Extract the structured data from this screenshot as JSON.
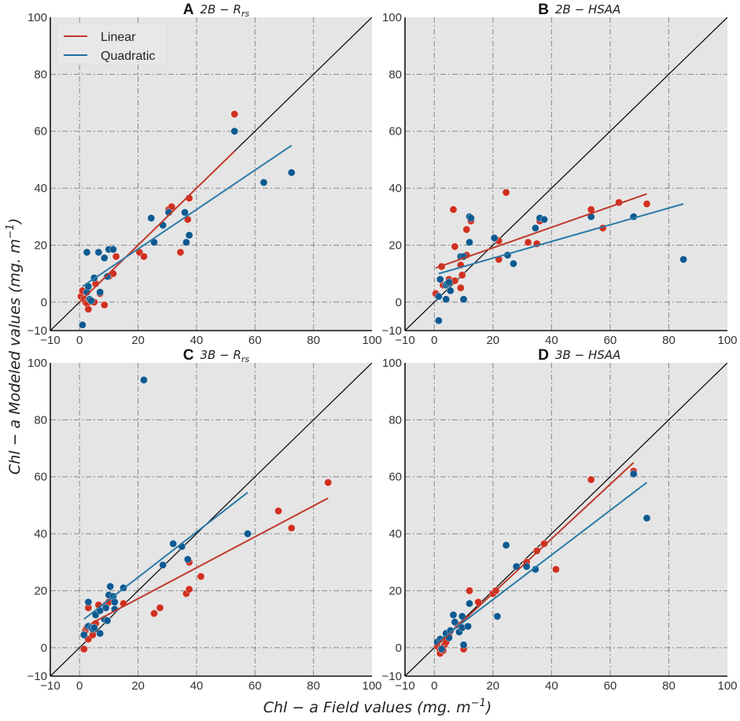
{
  "figure": {
    "xlabel": "Chl − a Field values (mg. m",
    "xlabel_sup": "−1",
    "xlabel_close": ")",
    "ylabel": "Chl − a Modeled values (mg. m",
    "ylabel_sup": "−1",
    "ylabel_close": ")",
    "legend": [
      {
        "label": "Linear",
        "color": "#c0392b"
      },
      {
        "label": "Quadratic",
        "color": "#1f6f9f"
      }
    ],
    "colors": {
      "linear_points": "#d03020",
      "quadratic_points": "#0d5a91",
      "linear_fit": "#c0392b",
      "quadratic_fit": "#2a7aa8",
      "one_to_one": "#000000",
      "axes_bg": "#e5e5e5",
      "grid": "#8a8a8a"
    }
  },
  "chart_data": [
    {
      "panel": "A",
      "type": "scatter",
      "title_letter": "A",
      "title": "2B − R",
      "title_sub": "rs",
      "xlim": [
        -10,
        100
      ],
      "ylim": [
        -10,
        100
      ],
      "xticks": [
        -10,
        0,
        20,
        40,
        60,
        80,
        100
      ],
      "yticks": [
        -10,
        0,
        20,
        40,
        60,
        80,
        100
      ],
      "grid": true,
      "legend_position": "top-left",
      "one_to_one_line": true,
      "series": [
        {
          "name": "Linear",
          "points": [
            [
              0.5,
              2
            ],
            [
              1,
              4
            ],
            [
              1.5,
              1
            ],
            [
              2,
              0
            ],
            [
              2.5,
              -0.5
            ],
            [
              3,
              -2.5
            ],
            [
              3.5,
              1
            ],
            [
              4.5,
              0
            ],
            [
              5,
              0
            ],
            [
              5.5,
              6.5
            ],
            [
              7,
              3
            ],
            [
              8.5,
              -1
            ],
            [
              10,
              9
            ],
            [
              11.5,
              10
            ],
            [
              12.5,
              16
            ],
            [
              20.5,
              17.5
            ],
            [
              22,
              16
            ],
            [
              30.5,
              32.5
            ],
            [
              31.5,
              33.5
            ],
            [
              34.5,
              17.5
            ],
            [
              37,
              29
            ],
            [
              37.5,
              36.5
            ],
            [
              53,
              66
            ]
          ],
          "fit": [
            [
              0,
              0
            ],
            [
              53,
              53
            ]
          ]
        },
        {
          "name": "Quadratic",
          "points": [
            [
              1,
              -8
            ],
            [
              2.5,
              17.5
            ],
            [
              2.5,
              3.5
            ],
            [
              3,
              5.5
            ],
            [
              3.5,
              1
            ],
            [
              4,
              0.5
            ],
            [
              5,
              8.5
            ],
            [
              6.5,
              17.5
            ],
            [
              7,
              3.5
            ],
            [
              8.5,
              15.5
            ],
            [
              9.5,
              9
            ],
            [
              10,
              18.5
            ],
            [
              11.5,
              18.5
            ],
            [
              24.5,
              29.5
            ],
            [
              25.5,
              21
            ],
            [
              28.5,
              27
            ],
            [
              30.5,
              31.5
            ],
            [
              36,
              31.5
            ],
            [
              36.5,
              21
            ],
            [
              37.5,
              23.5
            ],
            [
              53,
              60
            ],
            [
              63,
              42
            ],
            [
              72.5,
              45.5
            ]
          ],
          "fit": [
            [
              1,
              5.5
            ],
            [
              72.5,
              55
            ]
          ]
        }
      ]
    },
    {
      "panel": "B",
      "type": "scatter",
      "title_letter": "B",
      "title": "2B − HSAA",
      "title_sub": "",
      "xlim": [
        -10,
        100
      ],
      "ylim": [
        -10,
        100
      ],
      "xticks": [
        -10,
        0,
        20,
        40,
        60,
        80,
        100
      ],
      "yticks": [
        -10,
        0,
        20,
        40,
        60,
        80,
        100
      ],
      "grid": true,
      "one_to_one_line": true,
      "series": [
        {
          "name": "Linear",
          "points": [
            [
              0.5,
              3
            ],
            [
              2.5,
              12.5
            ],
            [
              3,
              6
            ],
            [
              5,
              8
            ],
            [
              6.5,
              32.5
            ],
            [
              7,
              19.5
            ],
            [
              7,
              7.5
            ],
            [
              9,
              5
            ],
            [
              9,
              13
            ],
            [
              9.5,
              9.5
            ],
            [
              11,
              25.5
            ],
            [
              11,
              16.5
            ],
            [
              12.5,
              28.5
            ],
            [
              22,
              21.5
            ],
            [
              22,
              15
            ],
            [
              24.5,
              38.5
            ],
            [
              32,
              21
            ],
            [
              35,
              20.5
            ],
            [
              36,
              28.5
            ],
            [
              53.5,
              32.5
            ],
            [
              57.5,
              26
            ],
            [
              63,
              35
            ],
            [
              72.5,
              34.5
            ]
          ],
          "fit": [
            [
              0.5,
              12
            ],
            [
              72.5,
              38
            ]
          ]
        },
        {
          "name": "Quadratic",
          "points": [
            [
              1.5,
              -6.5
            ],
            [
              1.5,
              2
            ],
            [
              2,
              8
            ],
            [
              4,
              1
            ],
            [
              4,
              6
            ],
            [
              4.5,
              6.5
            ],
            [
              5,
              7
            ],
            [
              5.5,
              4
            ],
            [
              9,
              16
            ],
            [
              10,
              16
            ],
            [
              10,
              1
            ],
            [
              12,
              30
            ],
            [
              12.5,
              29.5
            ],
            [
              12,
              21
            ],
            [
              20.5,
              22.5
            ],
            [
              25,
              16.5
            ],
            [
              27,
              13.5
            ],
            [
              34.5,
              26
            ],
            [
              36,
              29.5
            ],
            [
              37.5,
              29
            ],
            [
              53.5,
              30
            ],
            [
              68,
              30
            ],
            [
              85,
              15
            ]
          ],
          "fit": [
            [
              1.5,
              10
            ],
            [
              85,
              34.5
            ]
          ]
        }
      ]
    },
    {
      "panel": "C",
      "type": "scatter",
      "title_letter": "C",
      "title": "3B − R",
      "title_sub": "rs",
      "xlim": [
        -10,
        100
      ],
      "ylim": [
        -10,
        100
      ],
      "xticks": [
        -10,
        0,
        20,
        40,
        60,
        80,
        100
      ],
      "yticks": [
        -10,
        0,
        20,
        40,
        60,
        80,
        100
      ],
      "grid": true,
      "one_to_one_line": true,
      "series": [
        {
          "name": "Linear",
          "points": [
            [
              1.5,
              -0.5
            ],
            [
              2,
              6
            ],
            [
              2.5,
              7
            ],
            [
              3,
              3
            ],
            [
              3,
              14
            ],
            [
              4.5,
              4.5
            ],
            [
              5,
              8
            ],
            [
              5.5,
              8.5
            ],
            [
              6.5,
              15
            ],
            [
              9,
              15
            ],
            [
              10,
              16
            ],
            [
              15,
              15.5
            ],
            [
              25.5,
              12
            ],
            [
              27.5,
              14
            ],
            [
              36.5,
              19
            ],
            [
              37.5,
              20.5
            ],
            [
              37.5,
              30
            ],
            [
              41.5,
              25
            ],
            [
              68,
              48
            ],
            [
              72.5,
              42
            ],
            [
              85,
              58
            ]
          ],
          "fit": [
            [
              4,
              8.5
            ],
            [
              85,
              52.5
            ]
          ]
        },
        {
          "name": "Quadratic",
          "points": [
            [
              1.5,
              4.5
            ],
            [
              3,
              16
            ],
            [
              3,
              7.5
            ],
            [
              4,
              7
            ],
            [
              4.5,
              6.5
            ],
            [
              5,
              7
            ],
            [
              5.5,
              11.5
            ],
            [
              7,
              13
            ],
            [
              7,
              5
            ],
            [
              8.5,
              10
            ],
            [
              9,
              14
            ],
            [
              9.5,
              9.5
            ],
            [
              10,
              18.5
            ],
            [
              10.5,
              21.5
            ],
            [
              11.5,
              18
            ],
            [
              12,
              16
            ],
            [
              12,
              13.5
            ],
            [
              15,
              21
            ],
            [
              22,
              94
            ],
            [
              28.5,
              29
            ],
            [
              32,
              36.5
            ],
            [
              35,
              35.5
            ],
            [
              37,
              31
            ],
            [
              57.5,
              40
            ]
          ],
          "fit": [
            [
              1.5,
              10
            ],
            [
              57.5,
              54.5
            ]
          ]
        }
      ]
    },
    {
      "panel": "D",
      "type": "scatter",
      "title_letter": "D",
      "title": "3B − HSAA",
      "title_sub": "",
      "xlim": [
        -10,
        100
      ],
      "ylim": [
        -10,
        100
      ],
      "xticks": [
        -10,
        0,
        20,
        40,
        60,
        80,
        100
      ],
      "yticks": [
        -10,
        0,
        20,
        40,
        60,
        80,
        100
      ],
      "grid": true,
      "one_to_one_line": true,
      "series": [
        {
          "name": "Linear",
          "points": [
            [
              1,
              0.5
            ],
            [
              2,
              -1
            ],
            [
              2,
              -2
            ],
            [
              3,
              -1
            ],
            [
              3.5,
              1
            ],
            [
              4,
              2
            ],
            [
              5,
              4.5
            ],
            [
              8,
              8
            ],
            [
              10,
              -0.5
            ],
            [
              12,
              20
            ],
            [
              15,
              16
            ],
            [
              20,
              19
            ],
            [
              21,
              20
            ],
            [
              31.5,
              30
            ],
            [
              35,
              34
            ],
            [
              37.5,
              36.5
            ],
            [
              41.5,
              27.5
            ],
            [
              53.5,
              59
            ],
            [
              68,
              62
            ]
          ],
          "fit": [
            [
              0,
              0
            ],
            [
              68,
              65
            ]
          ]
        },
        {
          "name": "Quadratic",
          "points": [
            [
              1,
              2
            ],
            [
              2,
              3
            ],
            [
              2.5,
              -0.5
            ],
            [
              4,
              5
            ],
            [
              5,
              3.5
            ],
            [
              5.5,
              6
            ],
            [
              6.5,
              11.5
            ],
            [
              7,
              9
            ],
            [
              8.5,
              5.5
            ],
            [
              9.5,
              11
            ],
            [
              9.5,
              7
            ],
            [
              10,
              1
            ],
            [
              11.5,
              7.5
            ],
            [
              12,
              15.5
            ],
            [
              21.5,
              11
            ],
            [
              24.5,
              36
            ],
            [
              28,
              28.5
            ],
            [
              31.5,
              28.5
            ],
            [
              34.5,
              27.5
            ],
            [
              68,
              61
            ],
            [
              72.5,
              45.5
            ]
          ],
          "fit": [
            [
              1,
              2
            ],
            [
              72.5,
              58
            ]
          ]
        }
      ]
    }
  ]
}
